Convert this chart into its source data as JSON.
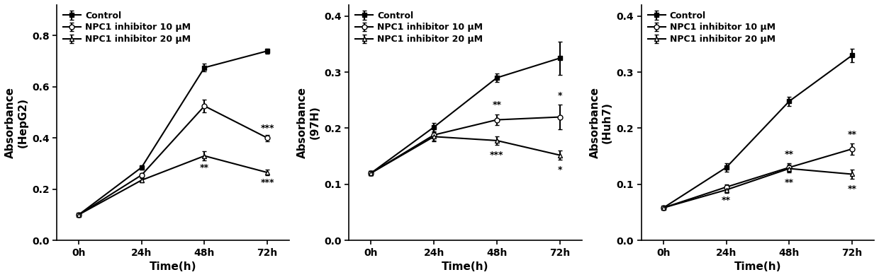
{
  "panels": [
    {
      "ylabel": "Absorbance\n(HepG2)",
      "ylim": [
        0.0,
        0.92
      ],
      "yticks": [
        0.0,
        0.2,
        0.4,
        0.6,
        0.8
      ],
      "control": {
        "y": [
          0.1,
          0.285,
          0.675,
          0.74
        ],
        "yerr": [
          0.004,
          0.008,
          0.015,
          0.01
        ]
      },
      "inhib10": {
        "y": [
          0.1,
          0.255,
          0.525,
          0.4
        ],
        "yerr": [
          0.004,
          0.008,
          0.025,
          0.012
        ]
      },
      "inhib20": {
        "y": [
          0.1,
          0.235,
          0.33,
          0.265
        ],
        "yerr": [
          0.004,
          0.008,
          0.018,
          0.012
        ]
      },
      "annotations": [
        {
          "x": 2,
          "y_ref": "i20_below",
          "text": "**"
        },
        {
          "x": 3,
          "y_ref": "i10_above",
          "text": "***"
        },
        {
          "x": 3,
          "y_ref": "i20_below",
          "text": "***"
        }
      ]
    },
    {
      "ylabel": "Absorbance\n(97H)",
      "ylim": [
        0.0,
        0.42
      ],
      "yticks": [
        0.0,
        0.1,
        0.2,
        0.3,
        0.4
      ],
      "control": {
        "y": [
          0.12,
          0.202,
          0.29,
          0.325
        ],
        "yerr": [
          0.004,
          0.008,
          0.008,
          0.03
        ]
      },
      "inhib10": {
        "y": [
          0.12,
          0.188,
          0.215,
          0.22
        ],
        "yerr": [
          0.004,
          0.01,
          0.01,
          0.022
        ]
      },
      "inhib20": {
        "y": [
          0.12,
          0.185,
          0.178,
          0.152
        ],
        "yerr": [
          0.004,
          0.008,
          0.008,
          0.008
        ]
      },
      "annotations": [
        {
          "x": 2,
          "y_ref": "i10_above",
          "text": "**"
        },
        {
          "x": 2,
          "y_ref": "i20_below",
          "text": "***"
        },
        {
          "x": 3,
          "y_ref": "i10_above",
          "text": "*"
        },
        {
          "x": 3,
          "y_ref": "i20_below",
          "text": "*"
        }
      ]
    },
    {
      "ylabel": "Absorbance\n(Huh7)",
      "ylim": [
        0.0,
        0.42
      ],
      "yticks": [
        0.0,
        0.1,
        0.2,
        0.3,
        0.4
      ],
      "control": {
        "y": [
          0.058,
          0.13,
          0.248,
          0.33
        ],
        "yerr": [
          0.003,
          0.007,
          0.008,
          0.012
        ]
      },
      "inhib10": {
        "y": [
          0.058,
          0.095,
          0.13,
          0.163
        ],
        "yerr": [
          0.003,
          0.005,
          0.007,
          0.01
        ]
      },
      "inhib20": {
        "y": [
          0.058,
          0.09,
          0.128,
          0.118
        ],
        "yerr": [
          0.003,
          0.005,
          0.007,
          0.008
        ]
      },
      "annotations": [
        {
          "x": 1,
          "y_ref": "i10_below",
          "text": "**"
        },
        {
          "x": 2,
          "y_ref": "i10_above",
          "text": "**"
        },
        {
          "x": 2,
          "y_ref": "i20_below",
          "text": "**"
        },
        {
          "x": 3,
          "y_ref": "i10_above",
          "text": "**"
        },
        {
          "x": 3,
          "y_ref": "i20_below",
          "text": "**"
        }
      ]
    }
  ],
  "xticklabels": [
    "0h",
    "24h",
    "48h",
    "72h"
  ],
  "x": [
    0,
    1,
    2,
    3
  ],
  "xlabel": "Time(h)",
  "legend_labels": [
    "Control",
    "NPC1 inhibitor 10 μM",
    "NPC1 inhibitor 20 μM"
  ],
  "line_color": "#000000",
  "marker_control": "s",
  "marker_10": "o",
  "marker_20": "^",
  "markersize": 5,
  "linewidth": 1.5,
  "fontsize_label": 11,
  "fontsize_tick": 10,
  "fontsize_legend": 9,
  "fontsize_annot": 9
}
